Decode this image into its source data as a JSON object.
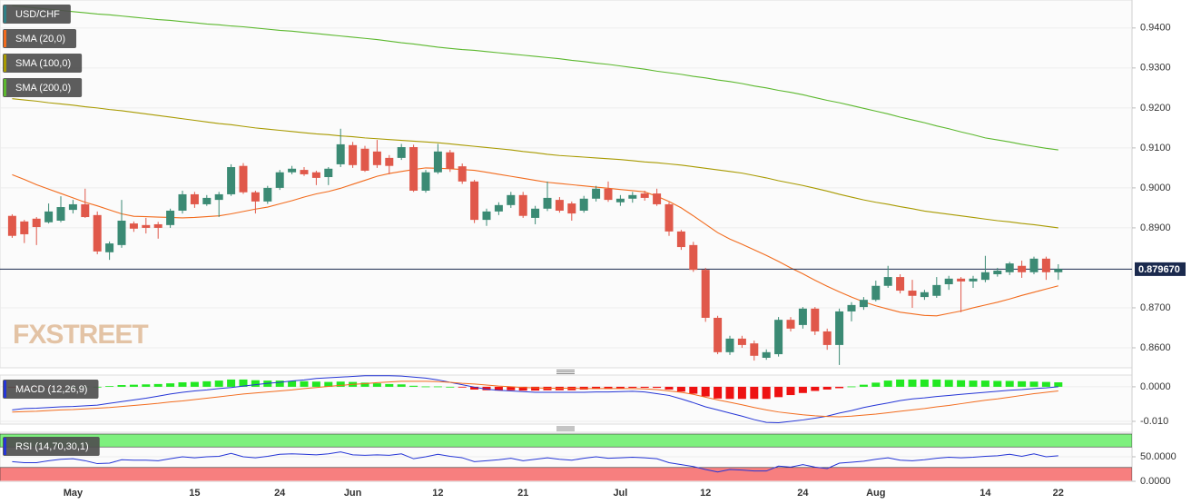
{
  "chart_data": [
    {
      "type": "candlestick",
      "title": "USD/CHF",
      "color": "#2f7f86",
      "up_color": "#3b8a74",
      "down_color": "#e0584a",
      "watermark": "FXSTREET",
      "grid": true,
      "categories": [
        null,
        null,
        null,
        null,
        null,
        "May",
        null,
        null,
        null,
        null,
        null,
        null,
        null,
        null,
        null,
        "15",
        null,
        null,
        null,
        null,
        null,
        null,
        "24",
        null,
        null,
        null,
        null,
        null,
        "Jun",
        null,
        null,
        null,
        null,
        null,
        null,
        "12",
        null,
        null,
        null,
        null,
        null,
        null,
        "21",
        null,
        null,
        null,
        null,
        null,
        null,
        null,
        "Jul",
        null,
        null,
        null,
        null,
        null,
        null,
        "12",
        null,
        null,
        null,
        null,
        null,
        null,
        null,
        "24",
        null,
        null,
        null,
        null,
        null,
        "Aug",
        null,
        null,
        null,
        null,
        null,
        null,
        null,
        null,
        "14",
        null,
        null,
        null,
        null,
        null,
        "22"
      ],
      "open": [
        0.893,
        0.8916,
        0.8923,
        0.8914,
        0.8918,
        0.8945,
        0.8959,
        0.8932,
        0.8839,
        0.8857,
        0.8911,
        0.8907,
        0.8909,
        0.8907,
        0.8943,
        0.8984,
        0.8959,
        0.897,
        0.8984,
        0.9055,
        0.8989,
        0.8966,
        0.9,
        0.9039,
        0.9045,
        0.9039,
        0.9027,
        0.9059,
        0.9107,
        0.9098,
        0.9091,
        0.9075,
        0.9075,
        0.9102,
        0.8993,
        0.9039,
        0.9089,
        0.9054,
        0.9016,
        0.892,
        0.8941,
        0.8957,
        0.8982,
        0.8925,
        0.8948,
        0.897,
        0.8961,
        0.8943,
        0.8973,
        0.8998,
        0.8964,
        0.8973,
        0.8986,
        0.8986,
        0.8959,
        0.8891,
        0.8857,
        0.8795,
        0.8675,
        0.8589,
        0.8623,
        0.8611,
        0.8575,
        0.8584,
        0.867,
        0.8657,
        0.8698,
        0.8641,
        0.8607,
        0.8691,
        0.8702,
        0.872,
        0.8755,
        0.8777,
        0.8743,
        0.8727,
        0.873,
        0.8759,
        0.8773,
        0.8766,
        0.877,
        0.8784,
        0.8789,
        0.8805,
        0.8789,
        0.8823,
        0.8789
      ],
      "high": [
        0.8934,
        0.892,
        0.8927,
        0.8961,
        0.8979,
        0.897,
        0.8998,
        0.8941,
        0.8866,
        0.897,
        0.8916,
        0.8925,
        0.8915,
        0.8948,
        0.8993,
        0.899,
        0.8982,
        0.899,
        0.9059,
        0.9062,
        0.8993,
        0.9005,
        0.9045,
        0.9055,
        0.9052,
        0.9043,
        0.9052,
        0.9148,
        0.9115,
        0.9105,
        0.912,
        0.9082,
        0.911,
        0.9108,
        0.9045,
        0.911,
        0.9095,
        0.9061,
        0.902,
        0.8948,
        0.8964,
        0.899,
        0.899,
        0.8955,
        0.9016,
        0.8977,
        0.8966,
        0.898,
        0.9005,
        0.9016,
        0.8982,
        0.899,
        0.8993,
        0.8998,
        0.8964,
        0.8895,
        0.8865,
        0.88,
        0.868,
        0.863,
        0.863,
        0.8618,
        0.8596,
        0.8677,
        0.8677,
        0.8702,
        0.8702,
        0.8648,
        0.8698,
        0.8714,
        0.8727,
        0.8768,
        0.8805,
        0.8784,
        0.877,
        0.8745,
        0.8777,
        0.878,
        0.8777,
        0.878,
        0.883,
        0.88,
        0.8815,
        0.8818,
        0.8828,
        0.8828,
        0.8809
      ],
      "low": [
        0.8875,
        0.8862,
        0.8857,
        0.8911,
        0.8914,
        0.8936,
        0.8925,
        0.8834,
        0.882,
        0.885,
        0.889,
        0.8886,
        0.8873,
        0.89,
        0.8936,
        0.895,
        0.8955,
        0.8927,
        0.898,
        0.8985,
        0.8936,
        0.896,
        0.8995,
        0.9034,
        0.903,
        0.9007,
        0.9007,
        0.9052,
        0.905,
        0.904,
        0.905,
        0.9034,
        0.907,
        0.899,
        0.8988,
        0.9035,
        0.904,
        0.901,
        0.8912,
        0.8905,
        0.8932,
        0.895,
        0.8925,
        0.8909,
        0.8942,
        0.8938,
        0.8918,
        0.8938,
        0.8966,
        0.8965,
        0.8955,
        0.8963,
        0.8968,
        0.8955,
        0.888,
        0.8845,
        0.879,
        0.8665,
        0.8584,
        0.8582,
        0.86,
        0.8568,
        0.857,
        0.8578,
        0.8641,
        0.8648,
        0.8632,
        0.8595,
        0.8557,
        0.8666,
        0.8695,
        0.8716,
        0.875,
        0.8736,
        0.87,
        0.872,
        0.8725,
        0.8745,
        0.8689,
        0.875,
        0.8764,
        0.8778,
        0.8782,
        0.8775,
        0.8784,
        0.877,
        0.877
      ],
      "close": [
        0.888,
        0.8884,
        0.8902,
        0.8941,
        0.8952,
        0.8959,
        0.8927,
        0.8841,
        0.8861,
        0.8918,
        0.8898,
        0.89,
        0.89,
        0.8943,
        0.8984,
        0.8959,
        0.8975,
        0.8984,
        0.9052,
        0.8989,
        0.8966,
        0.9,
        0.9039,
        0.9048,
        0.9034,
        0.9025,
        0.9048,
        0.9109,
        0.9057,
        0.9043,
        0.9057,
        0.9055,
        0.9102,
        0.8993,
        0.9039,
        0.9091,
        0.9048,
        0.9016,
        0.892,
        0.8941,
        0.8957,
        0.8982,
        0.893,
        0.8948,
        0.8975,
        0.8943,
        0.8936,
        0.8973,
        0.8998,
        0.897,
        0.8973,
        0.8982,
        0.8975,
        0.8959,
        0.8891,
        0.8852,
        0.8795,
        0.8675,
        0.8589,
        0.8623,
        0.8607,
        0.858,
        0.8589,
        0.867,
        0.8648,
        0.8698,
        0.8641,
        0.8607,
        0.8691,
        0.8707,
        0.872,
        0.8755,
        0.8777,
        0.8743,
        0.873,
        0.8739,
        0.8757,
        0.8773,
        0.8766,
        0.8773,
        0.8789,
        0.8793,
        0.8811,
        0.8789,
        0.8823,
        0.8789,
        0.8797
      ],
      "series": [
        {
          "name": "SMA (20,0)",
          "color": "#f26b1d",
          "values": [
            0.9033,
            0.9021,
            0.9008,
            0.8997,
            0.8986,
            0.8975,
            0.8964,
            0.8955,
            0.8945,
            0.8935,
            0.8929,
            0.8928,
            0.8927,
            0.8926,
            0.8925,
            0.8926,
            0.8928,
            0.893,
            0.8935,
            0.8941,
            0.8947,
            0.8952,
            0.896,
            0.8968,
            0.8977,
            0.8985,
            0.8991,
            0.8999,
            0.9009,
            0.9019,
            0.9029,
            0.9036,
            0.9041,
            0.9046,
            0.905,
            0.9049,
            0.9048,
            0.9046,
            0.9044,
            0.9039,
            0.9034,
            0.9029,
            0.9024,
            0.9019,
            0.9014,
            0.9011,
            0.9008,
            0.9005,
            0.9002,
            0.8999,
            0.8996,
            0.8993,
            0.899,
            0.8979,
            0.8966,
            0.895,
            0.893,
            0.8909,
            0.8888,
            0.8872,
            0.8859,
            0.8845,
            0.8831,
            0.8816,
            0.88,
            0.8785,
            0.8769,
            0.8754,
            0.874,
            0.8727,
            0.8715,
            0.8705,
            0.8697,
            0.8689,
            0.8685,
            0.8681,
            0.868,
            0.8686,
            0.8692,
            0.87,
            0.8707,
            0.8714,
            0.8722,
            0.8731,
            0.8739,
            0.8747,
            0.8755
          ]
        },
        {
          "name": "SMA (100,0)",
          "color": "#a89a00",
          "values": [
            0.9223,
            0.922,
            0.9217,
            0.9213,
            0.921,
            0.9207,
            0.9203,
            0.92,
            0.9196,
            0.9193,
            0.9189,
            0.9185,
            0.9181,
            0.9177,
            0.9173,
            0.9169,
            0.9165,
            0.9161,
            0.9158,
            0.9154,
            0.915,
            0.9147,
            0.9144,
            0.9141,
            0.9138,
            0.9135,
            0.9133,
            0.913,
            0.9128,
            0.9125,
            0.9123,
            0.9121,
            0.9119,
            0.9117,
            0.9115,
            0.9113,
            0.911,
            0.9107,
            0.9104,
            0.9101,
            0.9098,
            0.9095,
            0.9091,
            0.9088,
            0.9084,
            0.9081,
            0.9079,
            0.9077,
            0.9075,
            0.9073,
            0.9071,
            0.9068,
            0.9065,
            0.9063,
            0.906,
            0.9057,
            0.9053,
            0.9049,
            0.9045,
            0.9041,
            0.9037,
            0.9031,
            0.9025,
            0.9018,
            0.9012,
            0.9006,
            0.8999,
            0.8992,
            0.8984,
            0.8977,
            0.897,
            0.8964,
            0.8959,
            0.8953,
            0.8948,
            0.8942,
            0.8938,
            0.8934,
            0.893,
            0.8926,
            0.8922,
            0.8918,
            0.8915,
            0.8911,
            0.8908,
            0.8904,
            0.89
          ]
        },
        {
          "name": "SMA (200,0)",
          "color": "#5cb82e",
          "values": [
            0.9456,
            0.9453,
            0.945,
            0.9447,
            0.9444,
            0.9441,
            0.9438,
            0.9435,
            0.9433,
            0.943,
            0.9427,
            0.9424,
            0.9421,
            0.9419,
            0.9416,
            0.9413,
            0.941,
            0.9408,
            0.9405,
            0.9403,
            0.94,
            0.9397,
            0.9394,
            0.9392,
            0.9389,
            0.9386,
            0.9383,
            0.938,
            0.9377,
            0.9374,
            0.9371,
            0.9367,
            0.9363,
            0.936,
            0.9356,
            0.9352,
            0.9349,
            0.9346,
            0.9344,
            0.9341,
            0.9338,
            0.9335,
            0.9332,
            0.9329,
            0.9326,
            0.9323,
            0.9319,
            0.9316,
            0.9312,
            0.9309,
            0.9305,
            0.9301,
            0.9297,
            0.9292,
            0.9288,
            0.9284,
            0.9279,
            0.9275,
            0.927,
            0.9266,
            0.9261,
            0.9255,
            0.925,
            0.9244,
            0.9239,
            0.9233,
            0.9226,
            0.9219,
            0.9213,
            0.9206,
            0.9199,
            0.9192,
            0.9185,
            0.9177,
            0.917,
            0.9163,
            0.9155,
            0.9148,
            0.914,
            0.9133,
            0.9125,
            0.912,
            0.9115,
            0.9109,
            0.9104,
            0.9099,
            0.9095
          ]
        }
      ],
      "last_price": {
        "value": 0.87967,
        "label": "0.879670"
      },
      "last_price_color": "#1b2a4e",
      "ylim": [
        0.855,
        0.947
      ],
      "yticks": [
        {
          "value": 0.86,
          "label": "0.8600"
        },
        {
          "value": 0.87,
          "label": "0.8700"
        },
        {
          "value": 0.89,
          "label": "0.8900"
        },
        {
          "value": 0.9,
          "label": "0.9000"
        },
        {
          "value": 0.91,
          "label": "0.9100"
        },
        {
          "value": 0.92,
          "label": "0.9200"
        },
        {
          "value": 0.93,
          "label": "0.9300"
        },
        {
          "value": 0.94,
          "label": "0.9400"
        }
      ]
    },
    {
      "type": "macd",
      "title": "MACD (12,26,9)",
      "color": "#2535d6",
      "up_color": "#22e822",
      "down_color": "#ee1111",
      "macd_color": "#2535d6",
      "signal_color": "#f26b1d",
      "histogram": [
        -0.0003,
        -0.0003,
        -0.0002,
        -0.0001,
        -0.0001,
        0.0,
        0.0001,
        0.0,
        0.0002,
        0.0005,
        0.0006,
        0.0007,
        0.0008,
        0.001,
        0.0013,
        0.0014,
        0.0016,
        0.0018,
        0.0021,
        0.0021,
        0.0019,
        0.0018,
        0.0018,
        0.0017,
        0.0016,
        0.0015,
        0.0014,
        0.0015,
        0.0014,
        0.0012,
        0.001,
        0.0008,
        0.0007,
        0.0003,
        0.0001,
        0.0001,
        0.0,
        -0.0002,
        -0.0008,
        -0.001,
        -0.0011,
        -0.001,
        -0.0011,
        -0.0011,
        -0.001,
        -0.001,
        -0.001,
        -0.0008,
        -0.0006,
        -0.0006,
        -0.0005,
        -0.0003,
        -0.0003,
        -0.0003,
        -0.0008,
        -0.0014,
        -0.002,
        -0.0028,
        -0.0034,
        -0.0035,
        -0.0035,
        -0.0035,
        -0.0035,
        -0.003,
        -0.0024,
        -0.0018,
        -0.0012,
        -0.0008,
        -0.0004,
        0.0001,
        0.0006,
        0.0012,
        0.0018,
        0.0021,
        0.0021,
        0.0021,
        0.0021,
        0.002,
        0.0019,
        0.0018,
        0.0018,
        0.0017,
        0.0017,
        0.0016,
        0.0015,
        0.0014,
        0.0013
      ],
      "macd": [
        -0.0067,
        -0.0063,
        -0.0062,
        -0.006,
        -0.0058,
        -0.0057,
        -0.0055,
        -0.0053,
        -0.0048,
        -0.0043,
        -0.0038,
        -0.0033,
        -0.0027,
        -0.0021,
        -0.0016,
        -0.0012,
        -0.0009,
        -0.0005,
        -0.0002,
        0.0002,
        0.0006,
        0.001,
        0.0013,
        0.0017,
        0.002,
        0.0024,
        0.0026,
        0.0028,
        0.003,
        0.0032,
        0.0032,
        0.0032,
        0.0031,
        0.0028,
        0.0025,
        0.002,
        0.0013,
        0.0006,
        -0.0001,
        -0.0007,
        -0.001,
        -0.0012,
        -0.0014,
        -0.0016,
        -0.0016,
        -0.0016,
        -0.0016,
        -0.0016,
        -0.0015,
        -0.0015,
        -0.0014,
        -0.0013,
        -0.0015,
        -0.002,
        -0.0025,
        -0.0035,
        -0.0046,
        -0.0058,
        -0.0067,
        -0.0076,
        -0.0085,
        -0.0095,
        -0.0103,
        -0.0104,
        -0.01,
        -0.0096,
        -0.0091,
        -0.0085,
        -0.0076,
        -0.0069,
        -0.006,
        -0.0053,
        -0.0047,
        -0.004,
        -0.0035,
        -0.0032,
        -0.0028,
        -0.0025,
        -0.0022,
        -0.0019,
        -0.0016,
        -0.0013,
        -0.001,
        -0.0008,
        -0.0005,
        -0.0003,
        0.0
      ],
      "signal": [
        -0.0073,
        -0.0072,
        -0.0071,
        -0.0069,
        -0.0067,
        -0.0066,
        -0.0064,
        -0.0062,
        -0.006,
        -0.0057,
        -0.0054,
        -0.0051,
        -0.0048,
        -0.0044,
        -0.0041,
        -0.0037,
        -0.0033,
        -0.0029,
        -0.0025,
        -0.0021,
        -0.0018,
        -0.0015,
        -0.0012,
        -0.0009,
        -0.0005,
        -0.0002,
        0.0001,
        0.0004,
        0.0007,
        0.0009,
        0.0012,
        0.0014,
        0.0016,
        0.0016,
        0.0016,
        0.0015,
        0.0013,
        0.001,
        0.0008,
        0.0005,
        0.0002,
        0.0,
        -0.0002,
        -0.0003,
        -0.0004,
        -0.0004,
        -0.0004,
        -0.0005,
        -0.0005,
        -0.0005,
        -0.0005,
        -0.0005,
        -0.0006,
        -0.0008,
        -0.0012,
        -0.0016,
        -0.0022,
        -0.003,
        -0.0038,
        -0.0045,
        -0.0052,
        -0.006,
        -0.0067,
        -0.0073,
        -0.0077,
        -0.0081,
        -0.0084,
        -0.0086,
        -0.0087,
        -0.0085,
        -0.0082,
        -0.0079,
        -0.0075,
        -0.0071,
        -0.0067,
        -0.0063,
        -0.0058,
        -0.0054,
        -0.0049,
        -0.0044,
        -0.0039,
        -0.0035,
        -0.003,
        -0.0025,
        -0.002,
        -0.0016,
        -0.0012
      ],
      "ylim": [
        -0.0108,
        0.0034
      ],
      "yticks": [
        {
          "value": -0.01,
          "label": "-0.010"
        },
        {
          "value": 0,
          "label": "0.0000"
        }
      ]
    },
    {
      "type": "rsi",
      "title": "RSI (14,70,30,1)",
      "color": "#2535d6",
      "overbought": 70,
      "oversold": 30,
      "overbought_color": "#7ef07e",
      "oversold_color": "#f77f7f",
      "values": [
        40,
        38,
        38,
        42,
        45,
        46,
        42,
        36,
        37,
        44,
        43,
        43,
        42,
        46,
        50,
        48,
        50,
        51,
        57,
        50,
        48,
        51,
        55,
        56,
        55,
        54,
        56,
        60,
        54,
        53,
        54,
        53,
        56,
        46,
        50,
        55,
        51,
        48,
        40,
        42,
        44,
        47,
        42,
        45,
        48,
        45,
        43,
        47,
        50,
        47,
        48,
        49,
        48,
        46,
        38,
        34,
        30,
        24,
        19,
        24,
        23,
        21,
        21,
        31,
        29,
        34,
        29,
        26,
        37,
        39,
        41,
        45,
        48,
        43,
        42,
        44,
        47,
        49,
        48,
        49,
        51,
        52,
        55,
        51,
        56,
        50,
        52
      ],
      "ylim": [
        0,
        100
      ],
      "yticks": [
        {
          "value": 0,
          "label": "0.0000"
        },
        {
          "value": 50,
          "label": "50.0000"
        }
      ]
    }
  ]
}
